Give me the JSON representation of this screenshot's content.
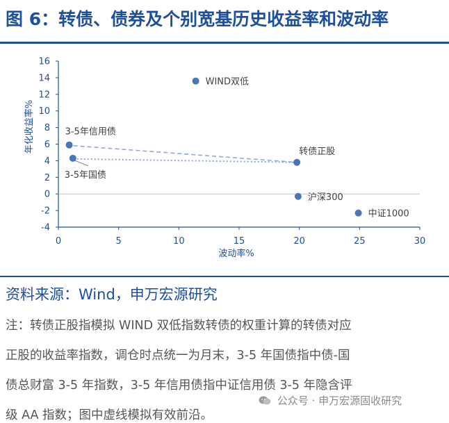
{
  "figure": {
    "title": "图 6：转债、债券及个别宽基历史收益率和波动率"
  },
  "chart_data": {
    "type": "scatter",
    "xlabel": "波动率%",
    "ylabel": "年化收益率%",
    "xlim": [
      0,
      30
    ],
    "ylim": [
      -4,
      16
    ],
    "xticks": [
      0,
      5,
      10,
      15,
      20,
      25,
      30
    ],
    "yticks": [
      -4,
      -2,
      0,
      2,
      4,
      6,
      8,
      10,
      12,
      14,
      16
    ],
    "grid": false,
    "series": [
      {
        "points": [
          {
            "label": "WIND双低",
            "x": 11.4,
            "y": 13.6
          },
          {
            "label": "3-5年信用债",
            "x": 0.9,
            "y": 5.9
          },
          {
            "label": "3-5年国债",
            "x": 1.2,
            "y": 4.3
          },
          {
            "label": "转债正股",
            "x": 19.8,
            "y": 3.8
          },
          {
            "label": "沪深300",
            "x": 19.9,
            "y": -0.3
          },
          {
            "label": "中证1000",
            "x": 24.9,
            "y": -2.3
          }
        ]
      }
    ],
    "frontier_lines": [
      {
        "style": "dashed",
        "from": "3-5年信用债",
        "to": "转债正股"
      },
      {
        "style": "dotted",
        "from": "3-5年国债",
        "to": "转债正股"
      }
    ],
    "colors": {
      "marker": "#4a76b6",
      "line": "#8fa9d6",
      "axis": "#1c4f9c",
      "text": "#404040"
    }
  },
  "source": "资料来源：Wind，申万宏源研究",
  "notes": [
    "注：转债正股指模拟 WIND 双低指数转债的权重计算的转债对应",
    "正股的收益率指数，调仓时点统一为月末，3-5 年国债指中债-国",
    "债总财富 3-5 年指数，3-5 年信用债指中证信用债 3-5 年隐含评",
    "级 AA 指数；图中虚线模拟有效前沿。"
  ],
  "watermark": {
    "icon": "wechat-icon",
    "text": "公众号 · 申万宏源固收研究"
  }
}
